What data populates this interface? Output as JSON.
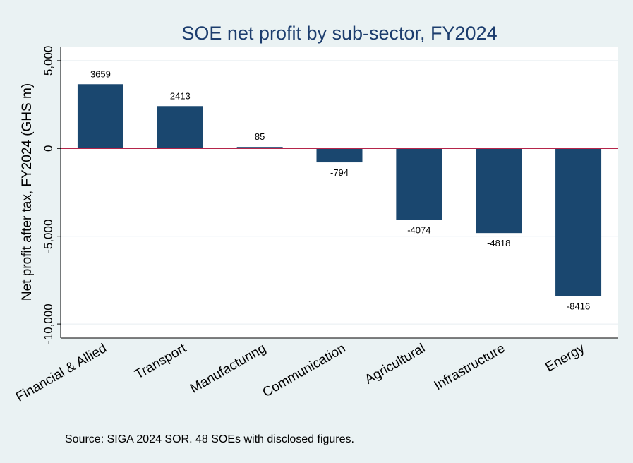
{
  "chart_data": {
    "type": "bar",
    "title": "SOE net profit by sub-sector, FY2024",
    "ylabel": "Net profit after tax, FY2024 (GHS m)",
    "xlabel": "",
    "categories": [
      "Financial & Allied",
      "Transport",
      "Manufacturing",
      "Communication",
      "Agricultural",
      "Infrastructure",
      "Energy"
    ],
    "values": [
      3659,
      2413,
      85,
      -794,
      -4074,
      -4818,
      -8416
    ],
    "value_labels": [
      "3659",
      "2413",
      "85",
      "-794",
      "-4074",
      "-4818",
      "-8416"
    ],
    "ylim": [
      -10800,
      5800
    ],
    "yticks": [
      5000,
      0,
      -5000,
      -10000
    ],
    "ytick_labels": [
      "5,000",
      "0",
      "-5,000",
      "-10,000"
    ],
    "grid": true,
    "bar_color": "#1a476f",
    "zero_line_color": "#b5254a",
    "plot_background": "#ffffff",
    "figure_background": "#eaf2f3",
    "grid_color": "#e6eef1",
    "note": "Source: SIGA 2024 SOR. 48 SOEs with disclosed figures."
  }
}
